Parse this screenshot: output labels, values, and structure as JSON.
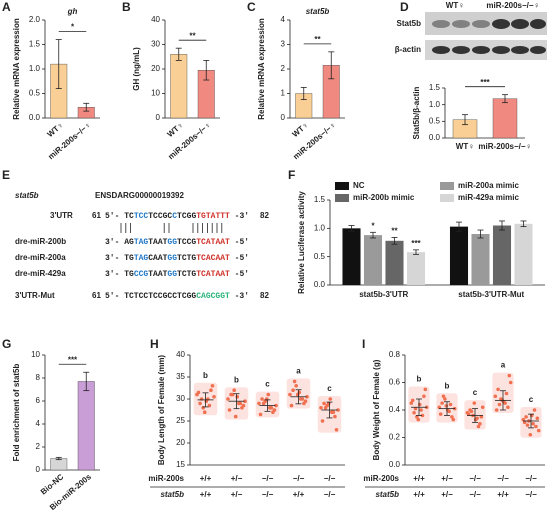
{
  "chart_data": [
    {
      "type": "bar",
      "label": "A",
      "title": "gh",
      "ylabel": "Relative mRNA expression",
      "categories": [
        "WT♀",
        "miR-200s−/−♀"
      ],
      "values": [
        1.1,
        0.22
      ],
      "errors": [
        0.5,
        0.08
      ],
      "colors": [
        "#f9cf95",
        "#f08a80"
      ],
      "ylim": [
        0,
        2
      ],
      "yticks": [
        {
          "value": 0,
          "label": "0.0"
        },
        {
          "value": 0.5,
          "label": "0.5"
        },
        {
          "value": 1,
          "label": "1.0"
        },
        {
          "value": 1.5,
          "label": "1.5"
        },
        {
          "value": 2,
          "label": "2.0"
        }
      ],
      "significance": "*"
    },
    {
      "type": "bar",
      "label": "B",
      "ylabel": "GH (ng/mL)",
      "categories": [
        "WT♀",
        "miR-200s−/−♀"
      ],
      "values": [
        26,
        19.5
      ],
      "errors": [
        2.5,
        4
      ],
      "colors": [
        "#f9cf95",
        "#f08a80"
      ],
      "ylim": [
        0,
        40
      ],
      "yticks": [
        0,
        10,
        20,
        30,
        40
      ],
      "significance": "**"
    },
    {
      "type": "bar",
      "label": "C",
      "title": "stat5b",
      "ylabel": "Relative mRNA expression",
      "categories": [
        "WT♀",
        "miR-200s−/−♀"
      ],
      "values": [
        1.0,
        2.15
      ],
      "errors": [
        0.25,
        0.55
      ],
      "colors": [
        "#f9cf95",
        "#f08a80"
      ],
      "ylim": [
        0,
        4
      ],
      "yticks": [
        0,
        1,
        2,
        3,
        4
      ],
      "significance": "**"
    },
    {
      "type": "bar",
      "label": "D",
      "ylabel": "Stat5b/β-actin",
      "categories": [
        "WT♀",
        "miR-200s−/−♀"
      ],
      "values": [
        0.55,
        1.18
      ],
      "errors": [
        0.15,
        0.12
      ],
      "colors": [
        "#f9cf95",
        "#f08a80"
      ],
      "ylim": [
        0,
        1.5
      ],
      "yticks": [
        {
          "value": 0,
          "label": "0.0"
        },
        {
          "value": 0.5,
          "label": "0.5"
        },
        {
          "value": 1,
          "label": "1.0"
        },
        {
          "value": 1.5,
          "label": "1.5"
        }
      ],
      "significance": "***",
      "blot": {
        "columns": [
          "WT♀",
          "miR-200s−/−♀"
        ],
        "rows": [
          "Stat5b",
          "β-actin"
        ]
      }
    },
    {
      "type": "grouped_bar",
      "label": "F",
      "ylabel": "Relative Luciferase activity",
      "categories": [
        "stat5b-3'UTR",
        "stat5b-3'UTR-Mut"
      ],
      "ylim": [
        0,
        1.5
      ],
      "yticks": [
        {
          "value": 0,
          "label": "0.0"
        },
        {
          "value": 0.5,
          "label": "0.5"
        },
        {
          "value": 1,
          "label": "1.0"
        },
        {
          "value": 1.5,
          "label": "1.5"
        }
      ],
      "series": [
        {
          "name": "NC",
          "color": "#111111",
          "values": [
            1.0,
            1.03
          ],
          "errors": [
            0.05,
            0.08
          ]
        },
        {
          "name": "miR-200a mimic",
          "color": "#9a9a9a",
          "values": [
            0.88,
            0.9
          ],
          "errors": [
            0.05,
            0.07
          ],
          "significance": "*"
        },
        {
          "name": "miR-200b mimic",
          "color": "#666666",
          "values": [
            0.78,
            1.05
          ],
          "errors": [
            0.06,
            0.08
          ],
          "significance": "**"
        },
        {
          "name": "miR-429a mimic",
          "color": "#d6d6d6",
          "values": [
            0.58,
            1.08
          ],
          "errors": [
            0.04,
            0.05
          ],
          "significance": "***"
        }
      ]
    },
    {
      "type": "bar",
      "label": "G",
      "ylabel": "Fold enrichment of stat5b",
      "categories": [
        "Bio-NC",
        "Bio-miR-200s"
      ],
      "values": [
        1.0,
        7.7
      ],
      "errors": [
        0.1,
        0.8
      ],
      "colors": [
        "#d6d6d6",
        "#c99dd6"
      ],
      "ylim": [
        0,
        10
      ],
      "yticks": [
        0,
        2,
        4,
        6,
        8,
        10
      ],
      "significance": "***"
    },
    {
      "type": "dot",
      "label": "H",
      "ylabel": "Body Length of Female (mm)",
      "ylim": [
        15,
        40
      ],
      "yticks": [
        15,
        20,
        25,
        30,
        35,
        40
      ],
      "letters": [
        "b",
        "b",
        "c",
        "a",
        "c"
      ],
      "means": [
        29.8,
        29.5,
        28.5,
        30.5,
        27.5
      ],
      "errors": [
        1.6,
        1.7,
        1.3,
        1.6,
        1.8
      ],
      "points": [
        [
          31,
          30,
          29,
          32,
          28,
          30.5,
          29.5,
          31.5,
          28.5,
          30,
          33,
          27
        ],
        [
          30,
          29,
          31,
          28,
          32,
          29.5,
          30.5,
          27.5,
          29,
          31,
          28.5,
          26
        ],
        [
          29,
          28,
          30,
          27,
          29.5,
          28.5,
          31,
          26.5,
          28,
          29,
          27.5,
          30
        ],
        [
          31,
          30,
          32,
          29,
          33,
          30.5,
          31.5,
          28.5,
          30,
          34,
          29.5,
          31
        ],
        [
          28,
          27,
          29,
          26,
          28.5,
          27.5,
          30,
          25,
          27,
          28,
          23,
          29
        ]
      ],
      "genotype_rows": [
        {
          "name": "miR-200s",
          "values": [
            "+/+",
            "+/−",
            "−/−",
            "−/−",
            "−/−"
          ]
        },
        {
          "name": "stat5b",
          "values": [
            "+/+",
            "+/−",
            "−/−",
            "+/+",
            "−/−"
          ]
        }
      ]
    },
    {
      "type": "dot",
      "label": "I",
      "ylabel": "Body Weight of Female (g)",
      "ylim": [
        0,
        0.8
      ],
      "yticks": [
        {
          "value": 0,
          "label": "0.0"
        },
        {
          "value": 0.2,
          "label": "0.2"
        },
        {
          "value": 0.4,
          "label": "0.4"
        },
        {
          "value": 0.6,
          "label": "0.6"
        },
        {
          "value": 0.8,
          "label": "0.8"
        }
      ],
      "letters": [
        "b",
        "b",
        "c",
        "a",
        "c"
      ],
      "means": [
        0.42,
        0.41,
        0.36,
        0.47,
        0.32
      ],
      "errors": [
        0.06,
        0.05,
        0.05,
        0.07,
        0.05
      ],
      "points": [
        [
          0.45,
          0.4,
          0.38,
          0.5,
          0.35,
          0.42,
          0.44,
          0.47,
          0.36,
          0.41,
          0.55,
          0.33
        ],
        [
          0.42,
          0.39,
          0.45,
          0.35,
          0.48,
          0.41,
          0.4,
          0.37,
          0.44,
          0.5,
          0.33,
          0.43
        ],
        [
          0.38,
          0.34,
          0.4,
          0.3,
          0.36,
          0.42,
          0.33,
          0.37,
          0.28,
          0.39,
          0.35,
          0.45
        ],
        [
          0.5,
          0.45,
          0.55,
          0.42,
          0.48,
          0.6,
          0.46,
          0.4,
          0.52,
          0.44,
          0.65,
          0.47
        ],
        [
          0.33,
          0.3,
          0.35,
          0.28,
          0.32,
          0.25,
          0.36,
          0.31,
          0.4,
          0.29,
          0.34,
          0.22
        ]
      ],
      "genotype_rows": [
        {
          "name": "miR-200s",
          "values": [
            "+/+",
            "+/−",
            "−/−",
            "−/−",
            "−/−"
          ]
        },
        {
          "name": "stat5b",
          "values": [
            "+/+",
            "+/−",
            "−/−",
            "+/+",
            "−/−"
          ]
        }
      ]
    }
  ],
  "panel_e": {
    "label": "E",
    "gene": "stat5b",
    "id": "ENSDARG00000019392",
    "rows": [
      {
        "name": "3'UTR",
        "start": "61",
        "end": "82",
        "segments": [
          {
            "text": "5'- TC",
            "color": "#222222"
          },
          {
            "text": "TCC",
            "color": "#1f78c8"
          },
          {
            "text": "TCCGC",
            "color": "#222222"
          },
          {
            "text": "C",
            "color": "#1f78c8"
          },
          {
            "text": "TCGG",
            "color": "#222222"
          },
          {
            "text": "TGTATTT",
            "color": "#d0302a"
          },
          {
            "text": " -3'",
            "color": "#222222"
          }
        ]
      },
      {
        "name": "dre-miR-200b",
        "segments": [
          {
            "text": "3'- AG",
            "color": "#222222"
          },
          {
            "text": "TAG",
            "color": "#1f78c8"
          },
          {
            "text": "TAAT",
            "color": "#222222"
          },
          {
            "text": "GG",
            "color": "#1f78c8"
          },
          {
            "text": "TCCG",
            "color": "#222222"
          },
          {
            "text": "TCATAAT",
            "color": "#d0302a"
          },
          {
            "text": " -5'",
            "color": "#222222"
          }
        ]
      },
      {
        "name": "dre-miR-200a",
        "segments": [
          {
            "text": "3'- TG",
            "color": "#222222"
          },
          {
            "text": "TAG",
            "color": "#1f78c8"
          },
          {
            "text": "CAAT",
            "color": "#222222"
          },
          {
            "text": "GG",
            "color": "#1f78c8"
          },
          {
            "text": "TCTG",
            "color": "#222222"
          },
          {
            "text": "TCACAAT",
            "color": "#d0302a"
          },
          {
            "text": " -5'",
            "color": "#222222"
          }
        ]
      },
      {
        "name": "dre-miR-429a",
        "segments": [
          {
            "text": "3'- TG",
            "color": "#222222"
          },
          {
            "text": "CCG",
            "color": "#1f78c8"
          },
          {
            "text": "TAAT",
            "color": "#222222"
          },
          {
            "text": "GG",
            "color": "#1f78c8"
          },
          {
            "text": "TCTG",
            "color": "#222222"
          },
          {
            "text": "TCATAAT",
            "color": "#d0302a"
          },
          {
            "text": " -5'",
            "color": "#222222"
          }
        ]
      },
      {
        "name": "3'UTR-Mut",
        "start": "61",
        "end": "82",
        "segments": [
          {
            "text": "5'- TCTCCTCCGCCTCGG",
            "color": "#222222"
          },
          {
            "text": "CAGCGGT",
            "color": "#2bb37a"
          },
          {
            "text": " -3'",
            "color": "#222222"
          }
        ]
      }
    ]
  }
}
